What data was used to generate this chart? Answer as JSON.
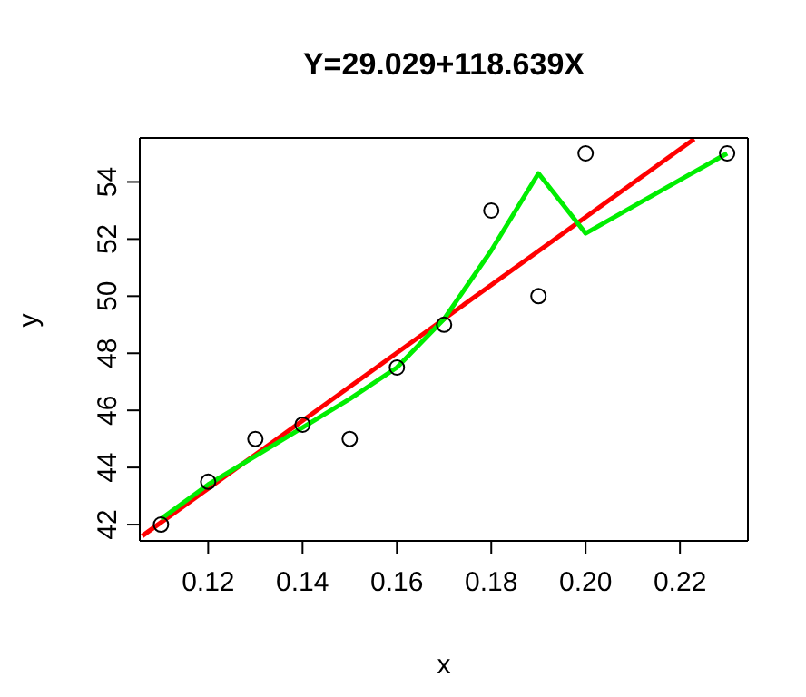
{
  "chart_data": {
    "type": "scatter",
    "title": "Y=29.029+118.639X",
    "xlabel": "x",
    "ylabel": "y",
    "xlim": [
      0.1055,
      0.2344
    ],
    "ylim": [
      41.43,
      55.54
    ],
    "xticks": [
      {
        "value": 0.12,
        "label": "0.12"
      },
      {
        "value": 0.14,
        "label": "0.14"
      },
      {
        "value": 0.16,
        "label": "0.16"
      },
      {
        "value": 0.18,
        "label": "0.18"
      },
      {
        "value": 0.2,
        "label": "0.20"
      },
      {
        "value": 0.22,
        "label": "0.22"
      }
    ],
    "yticks": [
      42,
      44,
      46,
      48,
      50,
      52,
      54
    ],
    "grid": false,
    "legend": false,
    "marker": "circle",
    "series": [
      {
        "color": "#000000",
        "x": [
          0.11,
          0.12,
          0.13,
          0.14,
          0.15,
          0.16,
          0.17,
          0.18,
          0.19,
          0.2,
          0.23
        ],
        "values": [
          42,
          43.5,
          45,
          45.5,
          45,
          47.5,
          49,
          53,
          50,
          55,
          55
        ]
      },
      {
        "type": "line",
        "color": "#ff0000",
        "marker": "none",
        "x": [
          0.106,
          0.223
        ],
        "values": [
          41.6,
          55.5
        ]
      },
      {
        "type": "line",
        "color": "#00ee00",
        "marker": "none",
        "x": [
          0.11,
          0.12,
          0.13,
          0.14,
          0.15,
          0.16,
          0.17,
          0.18,
          0.19,
          0.2,
          0.23
        ],
        "values": [
          42.2,
          43.4,
          44.4,
          45.4,
          46.4,
          47.5,
          49.2,
          51.6,
          54.3,
          52.2,
          55
        ]
      }
    ]
  }
}
